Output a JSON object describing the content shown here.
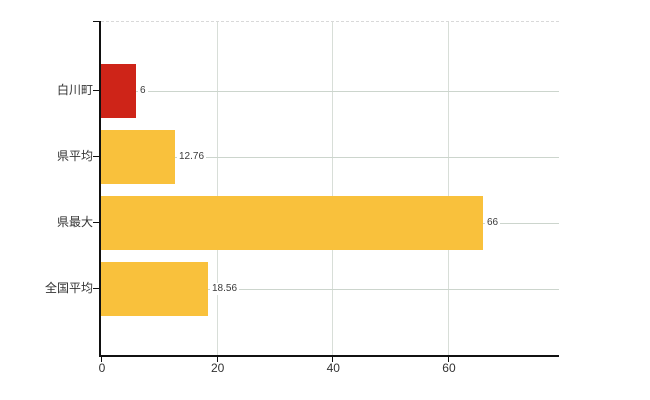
{
  "chart_data": {
    "type": "bar",
    "orientation": "horizontal",
    "title": "",
    "xlabel": "",
    "ylabel": "",
    "categories": [
      "白川町",
      "県平均",
      "県最大",
      "全国平均"
    ],
    "values": [
      6,
      12.76,
      66,
      18.56
    ],
    "value_labels": [
      "6",
      "12.76",
      "66",
      "18.56"
    ],
    "bar_colors": [
      "#ce2418",
      "#f9c13c",
      "#f9c13c",
      "#f9c13c"
    ],
    "x_ticks": [
      0,
      20,
      40,
      60
    ],
    "x_tick_labels": [
      "0",
      "20",
      "40",
      "60"
    ],
    "xlim": [
      0,
      79.2
    ],
    "grid": true,
    "legend": false,
    "plot_background": "#ffffff"
  },
  "colors": {
    "axis": "#111111",
    "horizontal_gridline": "#ccd5cd",
    "vertical_gridline": "#d8ded8",
    "plot_top_border": "#d9d9d9",
    "category_label": "#333333",
    "tick_label": "#333333",
    "value_label": "#3b3b3b",
    "highlight_bar": "#ce2418",
    "default_bar": "#f9c13c",
    "background": "#ffffff"
  }
}
